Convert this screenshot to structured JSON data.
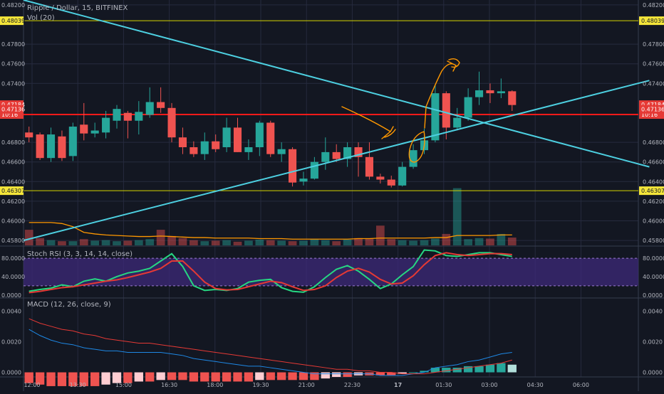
{
  "header": {
    "symbol_title": "Ripple / Dollar, 15, BITFINEX",
    "volume_label": "Vol (20)",
    "stoch_label": "Stoch RSI (3, 3, 14, 14, close)",
    "macd_label": "MACD (12, 26, close, 9)"
  },
  "colors": {
    "background": "#131722",
    "grid": "#262b3e",
    "up": "#26a69a",
    "down": "#ef5350",
    "trendline": "#4dd0e1",
    "level_yellow": "#d4d400",
    "level_red": "#ff1a1a",
    "annotation": "#ff9800",
    "stoch_k": "#26d782",
    "stoch_d": "#e53935",
    "stoch_band": "#3e2a7a",
    "macd_line": "#1e88e5",
    "signal_line": "#e53935"
  },
  "chart_data": [
    {
      "type": "candlestick",
      "panel": "price",
      "ylim": [
        0.4575,
        0.4825
      ],
      "y_ticks": [
        "0.48200",
        "0.47800",
        "0.47600",
        "0.47400",
        "0.46800",
        "0.46600",
        "0.46400",
        "0.46200",
        "0.46000",
        "0.45800"
      ],
      "x_ticks": [
        "12:00",
        "13:30",
        "15:00",
        "16:30",
        "18:00",
        "19:30",
        "21:00",
        "22:30",
        "17",
        "01:30",
        "03:00",
        "04:30",
        "06:00"
      ],
      "price_tags": [
        {
          "value": 0.48039,
          "label": "0.48039",
          "style": "yellow"
        },
        {
          "value": 0.47184,
          "label": "0.47184",
          "style": "red"
        },
        {
          "value": 0.47083,
          "label": "10:16",
          "style": "red"
        },
        {
          "value": 0.47136,
          "label": "0.47136",
          "style": "red"
        },
        {
          "value": 0.46307,
          "label": "0.46307",
          "style": "yellow"
        }
      ],
      "horizontal_levels": [
        {
          "value": 0.48039,
          "color": "yellow"
        },
        {
          "value": 0.47083,
          "color": "red"
        },
        {
          "value": 0.46307,
          "color": "yellow"
        }
      ],
      "trendlines": [
        {
          "from": [
            0,
            0.4825
          ],
          "to": [
            56,
            0.4655
          ]
        },
        {
          "from": [
            0,
            0.458
          ],
          "to": [
            56,
            0.4743
          ]
        }
      ],
      "candles": [
        [
          0.469,
          0.4696,
          0.468,
          0.4685
        ],
        [
          0.4688,
          0.469,
          0.4662,
          0.4664
        ],
        [
          0.4664,
          0.4695,
          0.466,
          0.4688
        ],
        [
          0.4686,
          0.4692,
          0.4661,
          0.4664
        ],
        [
          0.4666,
          0.47,
          0.4661,
          0.4696
        ],
        [
          0.4698,
          0.472,
          0.4682,
          0.4689
        ],
        [
          0.4689,
          0.47,
          0.4685,
          0.4692
        ],
        [
          0.469,
          0.4712,
          0.4684,
          0.4705
        ],
        [
          0.4702,
          0.4718,
          0.4694,
          0.4714
        ],
        [
          0.471,
          0.4712,
          0.4684,
          0.4702
        ],
        [
          0.4702,
          0.4722,
          0.4688,
          0.4711
        ],
        [
          0.4708,
          0.4736,
          0.4705,
          0.4721
        ],
        [
          0.4721,
          0.4736,
          0.471,
          0.4715
        ],
        [
          0.4715,
          0.472,
          0.468,
          0.4685
        ],
        [
          0.4685,
          0.4695,
          0.4668,
          0.4675
        ],
        [
          0.4675,
          0.4681,
          0.4665,
          0.4668
        ],
        [
          0.4668,
          0.469,
          0.4662,
          0.4681
        ],
        [
          0.4681,
          0.4688,
          0.467,
          0.4673
        ],
        [
          0.4675,
          0.4705,
          0.467,
          0.4695
        ],
        [
          0.4695,
          0.4705,
          0.467,
          0.467
        ],
        [
          0.467,
          0.4683,
          0.4662,
          0.4675
        ],
        [
          0.4675,
          0.4702,
          0.4666,
          0.47
        ],
        [
          0.47,
          0.4702,
          0.4665,
          0.4668
        ],
        [
          0.4668,
          0.468,
          0.466,
          0.4673
        ],
        [
          0.4673,
          0.4675,
          0.4635,
          0.4639
        ],
        [
          0.464,
          0.465,
          0.4636,
          0.4643
        ],
        [
          0.4643,
          0.4665,
          0.4642,
          0.466
        ],
        [
          0.466,
          0.4685,
          0.4652,
          0.467
        ],
        [
          0.467,
          0.4678,
          0.466,
          0.4663
        ],
        [
          0.4663,
          0.468,
          0.4655,
          0.4675
        ],
        [
          0.4675,
          0.468,
          0.4645,
          0.4665
        ],
        [
          0.4665,
          0.468,
          0.4642,
          0.4645
        ],
        [
          0.4645,
          0.4648,
          0.4638,
          0.4642
        ],
        [
          0.4642,
          0.4646,
          0.4634,
          0.4636
        ],
        [
          0.4636,
          0.466,
          0.4635,
          0.4655
        ],
        [
          0.4655,
          0.4678,
          0.4653,
          0.4672
        ],
        [
          0.4672,
          0.4694,
          0.4668,
          0.4682
        ],
        [
          0.4682,
          0.4738,
          0.468,
          0.473
        ],
        [
          0.473,
          0.4732,
          0.4683,
          0.4695
        ],
        [
          0.4695,
          0.4715,
          0.4692,
          0.4705
        ],
        [
          0.4705,
          0.4735,
          0.4702,
          0.4726
        ],
        [
          0.4726,
          0.4752,
          0.4718,
          0.4733
        ],
        [
          0.4733,
          0.474,
          0.472,
          0.473
        ],
        [
          0.473,
          0.4745,
          0.4725,
          0.4732
        ],
        [
          0.4732,
          0.4733,
          0.4712,
          0.4718
        ]
      ]
    },
    {
      "type": "bar",
      "panel": "volume",
      "name": "Vol (20)",
      "values": [
        30,
        14,
        10,
        8,
        8,
        12,
        9,
        10,
        8,
        9,
        10,
        12,
        30,
        18,
        14,
        10,
        8,
        9,
        10,
        7,
        9,
        11,
        10,
        9,
        8,
        9,
        12,
        10,
        8,
        11,
        14,
        13,
        38,
        12,
        10,
        9,
        10,
        13,
        22,
        110,
        12,
        14,
        13,
        22,
        15
      ],
      "ma_values": [
        44,
        44,
        44,
        42,
        36,
        25,
        22,
        20,
        19,
        18,
        17,
        17,
        18,
        17,
        16,
        15,
        15,
        14,
        14,
        14,
        14,
        13,
        13,
        13,
        12,
        12,
        12,
        12,
        12,
        12,
        13,
        13,
        14,
        14,
        14,
        14,
        14,
        15,
        15,
        19,
        19,
        19,
        19,
        20,
        20
      ]
    },
    {
      "type": "line",
      "panel": "stoch_rsi",
      "ylim": [
        -5,
        105
      ],
      "y_ticks": [
        "80.0000",
        "40.0000",
        "0.0000"
      ],
      "bands": [
        20,
        80
      ],
      "series": [
        {
          "name": "K",
          "values": [
            8,
            12,
            15,
            22,
            18,
            30,
            35,
            30,
            40,
            48,
            52,
            58,
            74,
            90,
            62,
            20,
            10,
            12,
            10,
            14,
            28,
            32,
            34,
            16,
            8,
            6,
            18,
            38,
            56,
            64,
            52,
            34,
            14,
            24,
            44,
            62,
            98,
            96,
            86,
            84,
            88,
            92,
            92,
            88,
            84
          ]
        },
        {
          "name": "D",
          "values": [
            5,
            8,
            12,
            16,
            18,
            22,
            26,
            30,
            33,
            38,
            44,
            50,
            58,
            74,
            74,
            52,
            28,
            14,
            11,
            12,
            18,
            24,
            30,
            27,
            18,
            10,
            12,
            20,
            38,
            52,
            58,
            50,
            34,
            24,
            26,
            42,
            66,
            86,
            92,
            88,
            86,
            88,
            90,
            90,
            88
          ]
        }
      ]
    },
    {
      "type": "line",
      "panel": "macd",
      "ylim": [
        -0.0003,
        0.0048
      ],
      "y_ticks": [
        "0.0040",
        "0.0020",
        "0.0000"
      ],
      "series": [
        {
          "name": "MACD",
          "values": [
            0.0028,
            0.0024,
            0.0021,
            0.0019,
            0.0018,
            0.0016,
            0.0015,
            0.0014,
            0.0014,
            0.0013,
            0.0013,
            0.0013,
            0.0013,
            0.0012,
            0.0011,
            0.0009,
            0.0008,
            0.0007,
            0.0006,
            0.0005,
            0.0004,
            0.0004,
            0.0003,
            0.0002,
            0.0001,
            0.0,
            -0.0001,
            -0.0001,
            -0.0001,
            -0.0001,
            -0.0001,
            -0.0001,
            -0.0002,
            -0.0002,
            -0.0002,
            -0.0001,
            0.0,
            0.0003,
            0.0004,
            0.0005,
            0.0007,
            0.0008,
            0.001,
            0.0012,
            0.0013
          ]
        },
        {
          "name": "Signal",
          "values": [
            0.0035,
            0.0032,
            0.003,
            0.0028,
            0.0027,
            0.0025,
            0.0024,
            0.0022,
            0.0021,
            0.002,
            0.0019,
            0.0019,
            0.0018,
            0.0017,
            0.0016,
            0.0015,
            0.0014,
            0.0013,
            0.0012,
            0.0011,
            0.001,
            0.0009,
            0.0008,
            0.0007,
            0.0006,
            0.0005,
            0.0004,
            0.0003,
            0.0002,
            0.0002,
            0.0001,
            0.0001,
            0.0,
            0.0,
            -0.0001,
            -0.0001,
            -0.0001,
            0.0,
            0.0001,
            0.0002,
            0.0003,
            0.0004,
            0.0005,
            0.0006,
            0.0008
          ]
        }
      ],
      "histogram": [
        -0.0007,
        -0.0008,
        -0.0009,
        -0.0009,
        -0.0009,
        -0.0009,
        -0.0009,
        -0.0008,
        -0.0007,
        -0.0007,
        -0.0006,
        -0.0006,
        -0.0005,
        -0.0005,
        -0.0005,
        -0.0006,
        -0.0006,
        -0.0006,
        -0.0006,
        -0.0006,
        -0.0006,
        -0.0005,
        -0.0005,
        -0.0005,
        -0.0005,
        -0.0005,
        -0.0005,
        -0.0004,
        -0.0003,
        -0.0003,
        -0.0002,
        -0.0002,
        -0.0002,
        -0.0002,
        -0.0001,
        0.0,
        0.0001,
        0.0003,
        0.0003,
        0.0003,
        0.0004,
        0.0004,
        0.0005,
        0.0006,
        0.0005
      ]
    }
  ]
}
